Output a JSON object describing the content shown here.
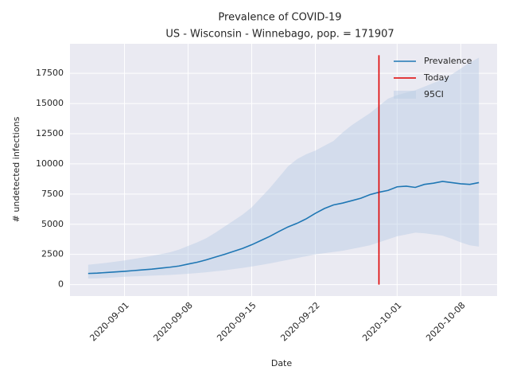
{
  "chart_data": {
    "type": "line",
    "title": "Prevalence of COVID-19",
    "subtitle": "US - Wisconsin - Winnebago, pop. = 171907",
    "xlabel": "Date",
    "ylabel": "# undetected infections",
    "x": [
      "2020-08-28",
      "2020-08-29",
      "2020-08-30",
      "2020-08-31",
      "2020-09-01",
      "2020-09-02",
      "2020-09-03",
      "2020-09-04",
      "2020-09-05",
      "2020-09-06",
      "2020-09-07",
      "2020-09-08",
      "2020-09-09",
      "2020-09-10",
      "2020-09-11",
      "2020-09-12",
      "2020-09-13",
      "2020-09-14",
      "2020-09-15",
      "2020-09-16",
      "2020-09-17",
      "2020-09-18",
      "2020-09-19",
      "2020-09-20",
      "2020-09-21",
      "2020-09-22",
      "2020-09-23",
      "2020-09-24",
      "2020-09-25",
      "2020-09-26",
      "2020-09-27",
      "2020-09-28",
      "2020-09-29",
      "2020-09-30",
      "2020-10-01",
      "2020-10-02",
      "2020-10-03",
      "2020-10-04",
      "2020-10-05",
      "2020-10-06",
      "2020-10-07",
      "2020-10-08",
      "2020-10-09",
      "2020-10-10"
    ],
    "series": [
      {
        "name": "Prevalence",
        "color": "#1f77b4",
        "values": [
          920,
          950,
          1000,
          1050,
          1100,
          1160,
          1220,
          1280,
          1360,
          1440,
          1540,
          1700,
          1850,
          2050,
          2280,
          2500,
          2750,
          3000,
          3300,
          3650,
          4000,
          4400,
          4780,
          5080,
          5450,
          5900,
          6300,
          6600,
          6750,
          6950,
          7150,
          7450,
          7650,
          7800,
          8100,
          8150,
          8050,
          8300,
          8400,
          8550,
          8450,
          8350,
          8300,
          8450
        ]
      },
      {
        "name": "Today",
        "color": "#e00000",
        "kind": "vline",
        "x": [
          "2020-09-29",
          "2020-09-29"
        ],
        "values": [
          0,
          19000
        ]
      },
      {
        "name": "95CI",
        "color": "#b8cce4",
        "kind": "band",
        "upper": [
          1650,
          1720,
          1800,
          1900,
          2000,
          2120,
          2250,
          2380,
          2520,
          2680,
          2900,
          3200,
          3500,
          3850,
          4300,
          4800,
          5300,
          5800,
          6400,
          7200,
          8000,
          8900,
          9800,
          10400,
          10800,
          11100,
          11500,
          11900,
          12600,
          13200,
          13700,
          14200,
          14800,
          15400,
          15700,
          15900,
          16100,
          16400,
          16700,
          17000,
          17400,
          17900,
          18400,
          18800
        ],
        "lower": [
          500,
          520,
          550,
          600,
          650,
          680,
          710,
          740,
          770,
          800,
          850,
          900,
          950,
          1020,
          1100,
          1180,
          1280,
          1380,
          1500,
          1620,
          1750,
          1900,
          2050,
          2200,
          2350,
          2500,
          2600,
          2700,
          2800,
          2950,
          3100,
          3250,
          3500,
          3750,
          4000,
          4150,
          4300,
          4250,
          4150,
          4050,
          3800,
          3500,
          3250,
          3150
        ]
      }
    ],
    "xlim": [
      "2020-08-26",
      "2020-10-12"
    ],
    "xticks": [
      "2020-09-01",
      "2020-09-08",
      "2020-09-15",
      "2020-09-22",
      "2020-10-01",
      "2020-10-08"
    ],
    "ylim": [
      -950,
      19950
    ],
    "yticks": [
      0,
      2500,
      5000,
      7500,
      10000,
      12500,
      15000,
      17500
    ],
    "grid": true,
    "legend": "upper right"
  }
}
